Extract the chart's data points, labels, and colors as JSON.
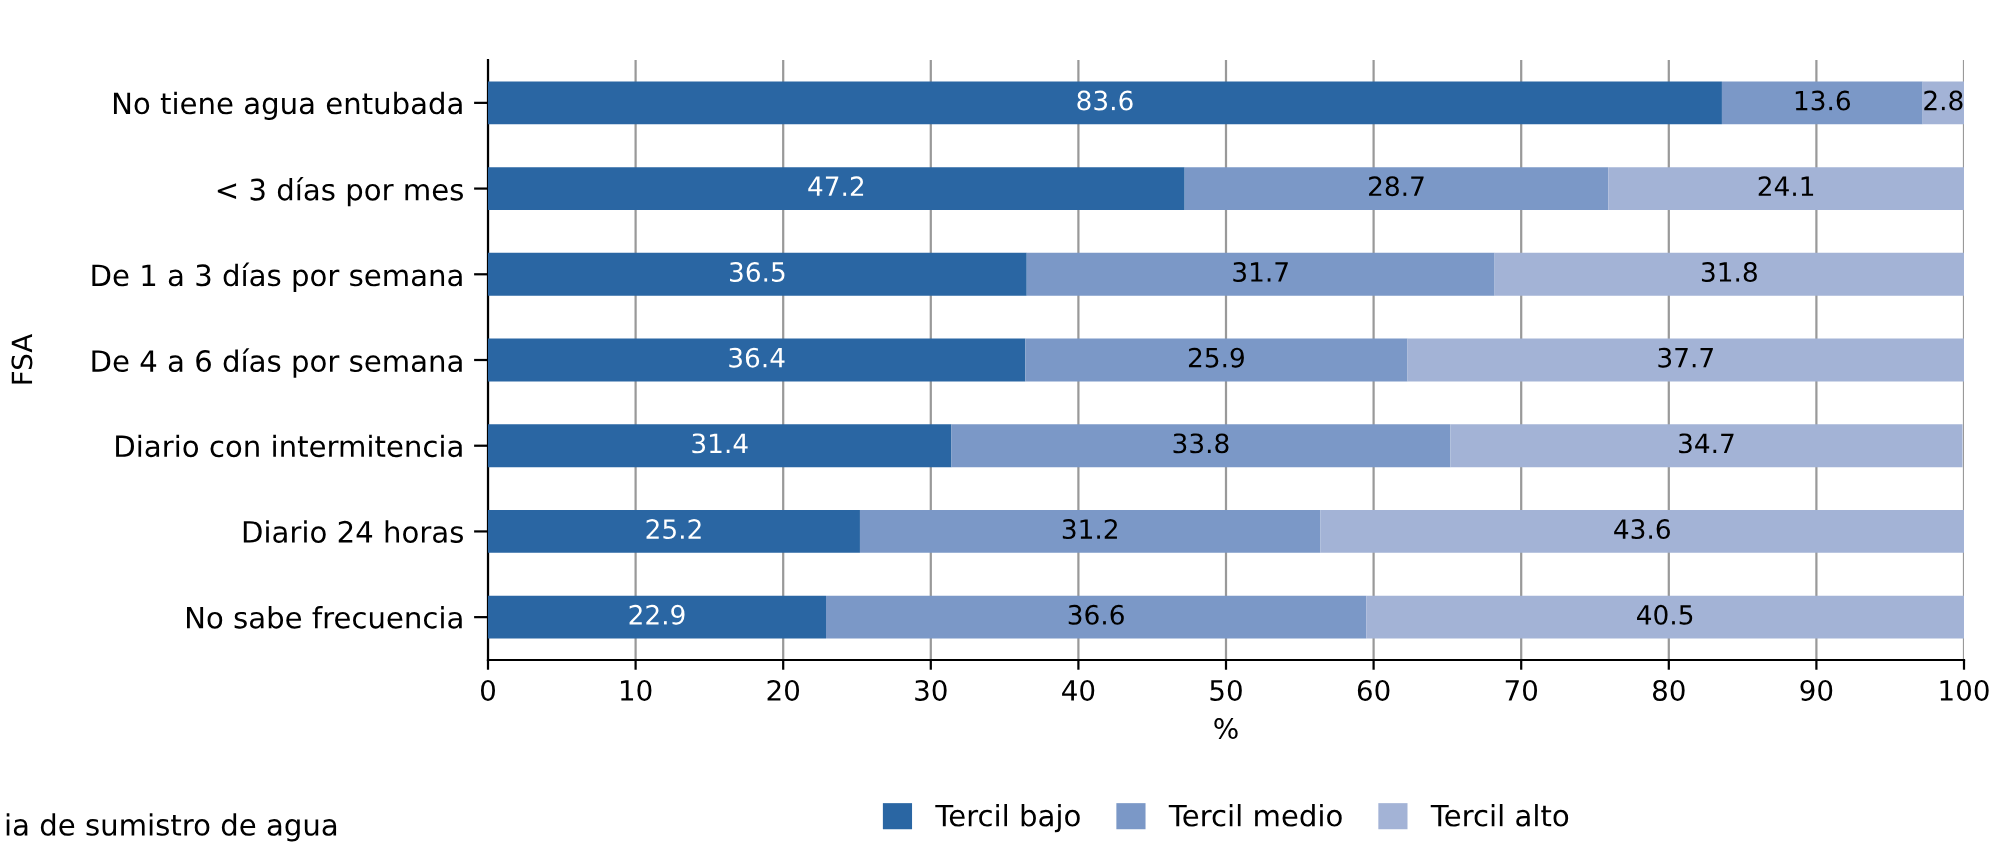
{
  "chart_data": {
    "type": "bar",
    "orientation": "horizontal",
    "stacked": true,
    "xlabel": "%",
    "ylabel": "FSA",
    "categories": [
      "No tiene agua entubada",
      "< 3 días por mes",
      "De 1 a 3 días por semana",
      "De 4 a 6 días por semana",
      "Diario con intermitencia",
      "Diario 24 horas",
      "No sabe frecuencia"
    ],
    "series": [
      {
        "name": "Tercil bajo",
        "color": "#2a66a3",
        "values": [
          83.6,
          47.2,
          36.5,
          36.4,
          31.4,
          25.2,
          22.9
        ]
      },
      {
        "name": "Tercil medio",
        "color": "#7b98c7",
        "values": [
          13.6,
          28.7,
          31.7,
          25.9,
          33.8,
          31.2,
          36.6
        ]
      },
      {
        "name": "Tercil alto",
        "color": "#a3b3d6",
        "values": [
          2.8,
          24.1,
          31.8,
          37.7,
          34.7,
          43.6,
          40.5
        ]
      }
    ],
    "xlim": [
      0,
      100
    ],
    "xticks": [
      0,
      10,
      20,
      30,
      40,
      50,
      60,
      70,
      80,
      90,
      100
    ],
    "grid": "x",
    "legend": "bottom",
    "data_labels": true,
    "annotations": [
      "ia de sumistro de agua"
    ]
  }
}
